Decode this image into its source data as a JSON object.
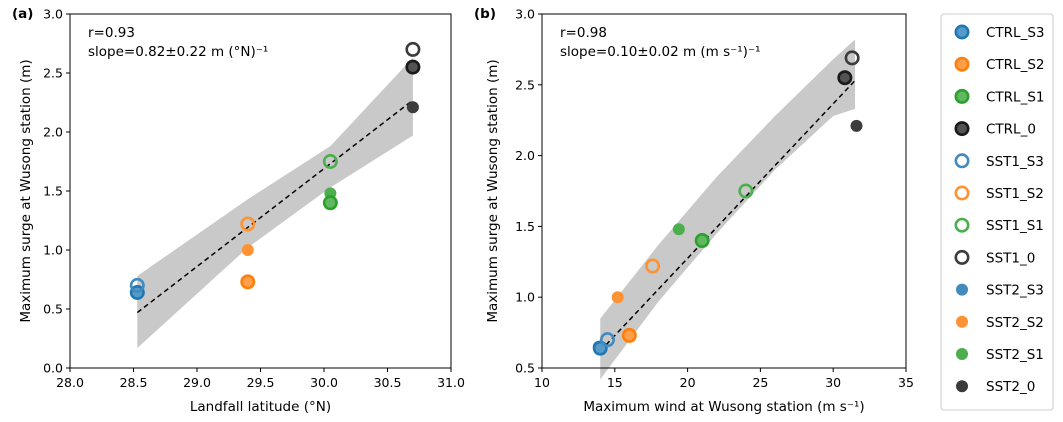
{
  "chart_data": [
    {
      "type": "scatter",
      "panel_label": "(a)",
      "xlabel": "Landfall latitude (°N)",
      "ylabel": "Maximum surge at Wusong station (m)",
      "xlim": [
        28.0,
        31.0
      ],
      "ylim": [
        0.0,
        3.0
      ],
      "xticks": [
        "28.0",
        "28.5",
        "29.0",
        "29.5",
        "30.0",
        "30.5",
        "31.0"
      ],
      "yticks": [
        "0.0",
        "0.5",
        "1.0",
        "1.5",
        "2.0",
        "2.5",
        "3.0"
      ],
      "annotations": [
        "r=0.93",
        "slope=0.82±0.22 m (°N)⁻¹"
      ],
      "fit_line": {
        "x": [
          28.53,
          30.7
        ],
        "y": [
          0.47,
          2.27
        ]
      },
      "confidence_band": {
        "x": [
          28.53,
          29.4,
          30.05,
          30.7
        ],
        "upper": [
          0.78,
          1.43,
          1.88,
          2.63
        ],
        "lower": [
          0.17,
          1.02,
          1.53,
          1.97
        ]
      },
      "series": [
        {
          "name": "CTRL_S3",
          "x": [
            28.53
          ],
          "y": [
            0.64
          ]
        },
        {
          "name": "CTRL_S2",
          "x": [
            29.4
          ],
          "y": [
            0.73
          ]
        },
        {
          "name": "CTRL_S1",
          "x": [
            30.05
          ],
          "y": [
            1.4
          ]
        },
        {
          "name": "CTRL_0",
          "x": [
            30.7
          ],
          "y": [
            2.55
          ]
        },
        {
          "name": "SST1_S3",
          "x": [
            28.53
          ],
          "y": [
            0.7
          ]
        },
        {
          "name": "SST1_S2",
          "x": [
            29.4
          ],
          "y": [
            1.22
          ]
        },
        {
          "name": "SST1_S1",
          "x": [
            30.05
          ],
          "y": [
            1.75
          ]
        },
        {
          "name": "SST1_0",
          "x": [
            30.7
          ],
          "y": [
            2.7
          ]
        },
        {
          "name": "SST2_S3",
          "x": [
            28.53
          ],
          "y": [
            0.65
          ]
        },
        {
          "name": "SST2_S2",
          "x": [
            29.4
          ],
          "y": [
            1.0
          ]
        },
        {
          "name": "SST2_S1",
          "x": [
            30.05
          ],
          "y": [
            1.48
          ]
        },
        {
          "name": "SST2_0",
          "x": [
            30.7
          ],
          "y": [
            2.21
          ]
        }
      ]
    },
    {
      "type": "scatter",
      "panel_label": "(b)",
      "xlabel": "Maximum wind at Wusong station (m s⁻¹)",
      "ylabel": "Maximum surge at Wusong station (m)",
      "xlim": [
        10,
        35
      ],
      "ylim": [
        0.5,
        3.0
      ],
      "xticks": [
        "10",
        "15",
        "20",
        "25",
        "30",
        "35"
      ],
      "yticks": [
        "0.5",
        "1.0",
        "1.5",
        "2.0",
        "2.5",
        "3.0"
      ],
      "annotations": [
        "r=0.98",
        "slope=0.10±0.02 m (m s⁻¹)⁻¹"
      ],
      "fit_line": {
        "x": [
          14.0,
          31.5
        ],
        "y": [
          0.62,
          2.53
        ]
      },
      "confidence_band": {
        "x": [
          14.0,
          18.0,
          22.0,
          26.0,
          30.0,
          31.5
        ],
        "upper": [
          0.85,
          1.37,
          1.85,
          2.28,
          2.68,
          2.82
        ],
        "lower": [
          0.42,
          0.97,
          1.45,
          1.9,
          2.28,
          2.33
        ]
      },
      "series": [
        {
          "name": "CTRL_S3",
          "x": [
            14.0
          ],
          "y": [
            0.64
          ]
        },
        {
          "name": "CTRL_S2",
          "x": [
            16.0
          ],
          "y": [
            0.73
          ]
        },
        {
          "name": "CTRL_S1",
          "x": [
            21.0
          ],
          "y": [
            1.4
          ]
        },
        {
          "name": "CTRL_0",
          "x": [
            30.8
          ],
          "y": [
            2.55
          ]
        },
        {
          "name": "SST1_S3",
          "x": [
            14.5
          ],
          "y": [
            0.7
          ]
        },
        {
          "name": "SST1_S2",
          "x": [
            17.6
          ],
          "y": [
            1.22
          ]
        },
        {
          "name": "SST1_S1",
          "x": [
            24.0
          ],
          "y": [
            1.75
          ]
        },
        {
          "name": "SST1_0",
          "x": [
            31.3
          ],
          "y": [
            2.69
          ]
        },
        {
          "name": "SST2_S3",
          "x": [
            13.9
          ],
          "y": [
            0.65
          ]
        },
        {
          "name": "SST2_S2",
          "x": [
            15.2
          ],
          "y": [
            1.0
          ]
        },
        {
          "name": "SST2_S1",
          "x": [
            19.4
          ],
          "y": [
            1.48
          ]
        },
        {
          "name": "SST2_0",
          "x": [
            31.6
          ],
          "y": [
            2.21
          ]
        }
      ]
    }
  ],
  "legend": {
    "placement": "right",
    "items": [
      {
        "name": "CTRL_S3",
        "style": "filled-ring",
        "color": "#1f77b4"
      },
      {
        "name": "CTRL_S2",
        "style": "filled-ring",
        "color": "#ff7f0e"
      },
      {
        "name": "CTRL_S1",
        "style": "filled-ring",
        "color": "#2ca02c"
      },
      {
        "name": "CTRL_0",
        "style": "filled-ring",
        "color": "#1a1a1a"
      },
      {
        "name": "SST1_S3",
        "style": "open",
        "color": "#1f77b4"
      },
      {
        "name": "SST1_S2",
        "style": "open",
        "color": "#ff7f0e"
      },
      {
        "name": "SST1_S1",
        "style": "open",
        "color": "#2ca02c"
      },
      {
        "name": "SST1_0",
        "style": "open",
        "color": "#1a1a1a"
      },
      {
        "name": "SST2_S3",
        "style": "filled",
        "color": "#1f77b4"
      },
      {
        "name": "SST2_S2",
        "style": "filled",
        "color": "#ff7f0e"
      },
      {
        "name": "SST2_S1",
        "style": "filled",
        "color": "#2ca02c"
      },
      {
        "name": "SST2_0",
        "style": "filled",
        "color": "#1a1a1a"
      }
    ]
  },
  "colors": {
    "band": "#c9c9c9",
    "fit_line": "#000000",
    "axis": "#000000"
  }
}
